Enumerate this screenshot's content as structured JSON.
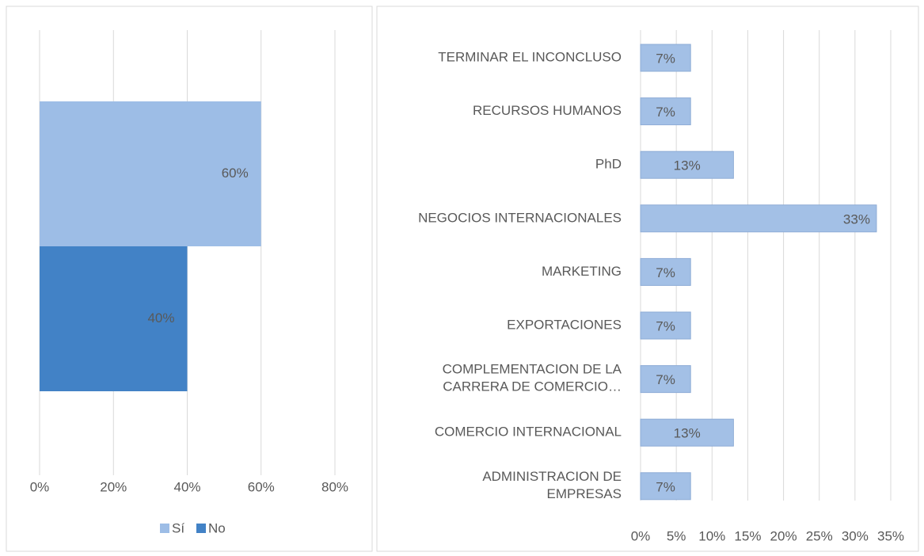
{
  "chart_data": [
    {
      "type": "bar",
      "series": [
        {
          "name": "Sí",
          "color": "#9dbde6",
          "values": [
            60
          ],
          "value_labels": [
            "60%"
          ]
        },
        {
          "name": "No",
          "color": "#4282c6",
          "values": [
            40
          ],
          "value_labels": [
            "40%"
          ]
        }
      ],
      "xlim": [
        0,
        80
      ],
      "xticks": [
        {
          "value": 0,
          "label": "0%"
        },
        {
          "value": 20,
          "label": "20%"
        },
        {
          "value": 40,
          "label": "40%"
        },
        {
          "value": 60,
          "label": "60%"
        },
        {
          "value": 80,
          "label": "80%"
        }
      ],
      "grid": true,
      "legend": "bottom"
    },
    {
      "type": "bar",
      "categories": [
        "TERMINAR EL INCONCLUSO",
        "RECURSOS HUMANOS",
        "PhD",
        "NEGOCIOS INTERNACIONALES",
        "MARKETING",
        "EXPORTACIONES",
        "COMPLEMENTACION DE LA\nCARRERA DE COMERCIO…",
        "COMERCIO INTERNACIONAL",
        "ADMINISTRACION DE\nEMPRESAS"
      ],
      "values": [
        7,
        7,
        13,
        33,
        7,
        7,
        7,
        13,
        7
      ],
      "value_labels": [
        "7%",
        "7%",
        "13%",
        "33%",
        "7%",
        "7%",
        "7%",
        "13%",
        "7%"
      ],
      "color": "#a3c0e6",
      "xlim": [
        0,
        35
      ],
      "xticks": [
        {
          "value": 0,
          "label": "0%"
        },
        {
          "value": 5,
          "label": "5%"
        },
        {
          "value": 10,
          "label": "10%"
        },
        {
          "value": 15,
          "label": "15%"
        },
        {
          "value": 20,
          "label": "20%"
        },
        {
          "value": 25,
          "label": "25%"
        },
        {
          "value": 30,
          "label": "30%"
        },
        {
          "value": 35,
          "label": "35%"
        }
      ],
      "grid": true
    }
  ]
}
